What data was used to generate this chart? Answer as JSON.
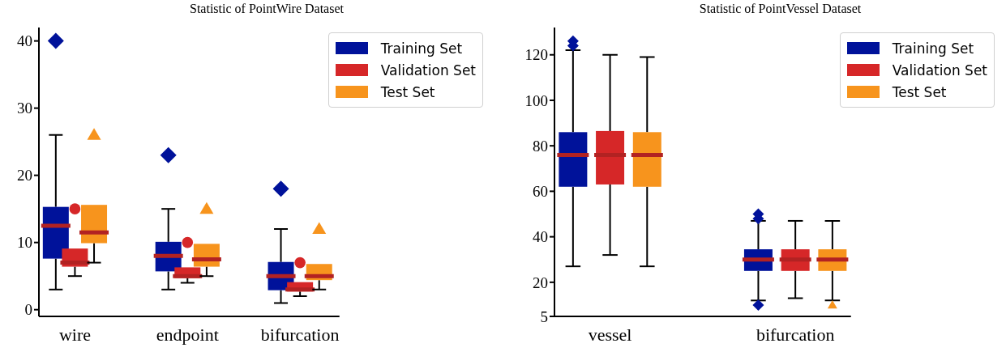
{
  "chart_data": [
    {
      "type": "box",
      "title": "Statistic of PointWire Dataset",
      "categories": [
        "wire",
        "endpoint",
        "bifurcation"
      ],
      "ylim": [
        -1,
        42
      ],
      "yticks": [
        0,
        10,
        20,
        30,
        40
      ],
      "legend": "top right",
      "series": [
        {
          "name": "Training Set",
          "color": "#00129a",
          "marker": "diamond",
          "boxes": [
            {
              "low": 3,
              "q1": 7.6,
              "median": 12.5,
              "q3": 15.3,
              "high": 26,
              "outliers": [
                40
              ]
            },
            {
              "low": 3,
              "q1": 5.7,
              "median": 8,
              "q3": 10.1,
              "high": 15,
              "outliers": [
                23
              ]
            },
            {
              "low": 1,
              "q1": 2.9,
              "median": 5,
              "q3": 7.1,
              "high": 12,
              "outliers": [
                18
              ]
            }
          ]
        },
        {
          "name": "Validation Set",
          "color": "#d62728",
          "marker": "circle",
          "boxes": [
            {
              "low": 5,
              "q1": 6.4,
              "median": 7,
              "q3": 9.1,
              "high": 9.1,
              "outliers": [
                15
              ]
            },
            {
              "low": 4,
              "q1": 4.7,
              "median": 5,
              "q3": 6.3,
              "high": 6.3,
              "outliers": [
                10
              ]
            },
            {
              "low": 2,
              "q1": 2.7,
              "median": 3,
              "q3": 4.1,
              "high": 4.1,
              "outliers": [
                7
              ]
            }
          ]
        },
        {
          "name": "Test Set",
          "color": "#f7941d",
          "marker": "triangle",
          "boxes": [
            {
              "low": 7,
              "q1": 9.9,
              "median": 11.5,
              "q3": 15.6,
              "high": 15.6,
              "outliers": [
                26
              ]
            },
            {
              "low": 5,
              "q1": 6.4,
              "median": 7.5,
              "q3": 9.8,
              "high": 9.8,
              "outliers": [
                15
              ]
            },
            {
              "low": 3,
              "q1": 4.4,
              "median": 5,
              "q3": 6.8,
              "high": 6.8,
              "outliers": [
                12
              ]
            }
          ]
        }
      ]
    },
    {
      "type": "box",
      "title": "Statistic of PointVessel Dataset",
      "categories": [
        "vessel",
        "bifurcation"
      ],
      "ylim": [
        5,
        132
      ],
      "yticks": [
        5,
        20,
        40,
        60,
        80,
        100,
        120
      ],
      "legend": "top right",
      "series": [
        {
          "name": "Training Set",
          "color": "#00129a",
          "marker": "diamond",
          "boxes": [
            {
              "low": 27,
              "q1": 62,
              "median": 76,
              "q3": 86,
              "high": 122,
              "outliers": [
                124,
                126
              ]
            },
            {
              "low": 12,
              "q1": 25,
              "median": 30,
              "q3": 34.5,
              "high": 47,
              "outliers": [
                48,
                50,
                10
              ]
            }
          ]
        },
        {
          "name": "Validation Set",
          "color": "#d62728",
          "boxes": [
            {
              "low": 32,
              "q1": 63,
              "median": 76,
              "q3": 86.5,
              "high": 120
            },
            {
              "low": 13,
              "q1": 25,
              "median": 30,
              "q3": 34.5,
              "high": 47
            }
          ]
        },
        {
          "name": "Test Set",
          "color": "#f7941d",
          "marker": "triangle",
          "boxes": [
            {
              "low": 27,
              "q1": 62,
              "median": 76,
              "q3": 86,
              "high": 119
            },
            {
              "low": 12,
              "q1": 25,
              "median": 30,
              "q3": 34.5,
              "high": 47,
              "outliers": [
                10
              ]
            }
          ]
        }
      ]
    }
  ]
}
